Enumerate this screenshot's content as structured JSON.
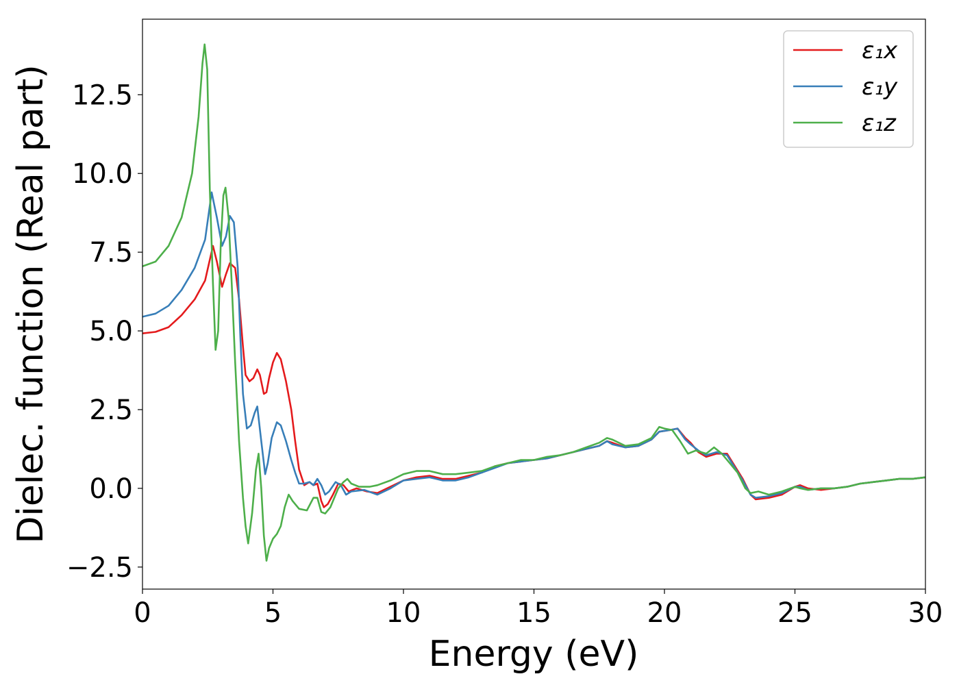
{
  "chart_data": {
    "type": "line",
    "xlabel": "Energy (eV)",
    "ylabel": "Dielec. function (Real part)",
    "xlim": [
      0,
      30
    ],
    "ylim": [
      -3.2,
      14.9
    ],
    "xticks": [
      0,
      5,
      10,
      15,
      20,
      25,
      30
    ],
    "yticks": [
      -2.5,
      0.0,
      2.5,
      5.0,
      7.5,
      10.0,
      12.5
    ],
    "grid": false,
    "legend_position": "top-right",
    "series": [
      {
        "name": "ε₁x",
        "color": "#e41a1c",
        "points": [
          [
            0,
            4.92
          ],
          [
            0.5,
            4.97
          ],
          [
            1.0,
            5.12
          ],
          [
            1.5,
            5.5
          ],
          [
            2.0,
            6.0
          ],
          [
            2.4,
            6.6
          ],
          [
            2.7,
            7.7
          ],
          [
            2.85,
            7.2
          ],
          [
            3.05,
            6.4
          ],
          [
            3.2,
            6.8
          ],
          [
            3.35,
            7.15
          ],
          [
            3.55,
            7.0
          ],
          [
            3.7,
            6.0
          ],
          [
            3.85,
            4.5
          ],
          [
            3.95,
            3.6
          ],
          [
            4.1,
            3.4
          ],
          [
            4.25,
            3.5
          ],
          [
            4.4,
            3.78
          ],
          [
            4.5,
            3.6
          ],
          [
            4.65,
            3.0
          ],
          [
            4.75,
            3.05
          ],
          [
            4.85,
            3.5
          ],
          [
            5.0,
            4.0
          ],
          [
            5.15,
            4.3
          ],
          [
            5.3,
            4.1
          ],
          [
            5.5,
            3.4
          ],
          [
            5.7,
            2.5
          ],
          [
            5.85,
            1.5
          ],
          [
            6.0,
            0.6
          ],
          [
            6.2,
            0.1
          ],
          [
            6.4,
            0.2
          ],
          [
            6.55,
            0.1
          ],
          [
            6.7,
            0.15
          ],
          [
            6.85,
            -0.4
          ],
          [
            6.95,
            -0.6
          ],
          [
            7.1,
            -0.5
          ],
          [
            7.3,
            -0.2
          ],
          [
            7.5,
            0.15
          ],
          [
            7.7,
            0.1
          ],
          [
            7.9,
            -0.1
          ],
          [
            8.2,
            0.0
          ],
          [
            8.6,
            -0.1
          ],
          [
            9.0,
            -0.15
          ],
          [
            9.5,
            0.05
          ],
          [
            10.0,
            0.25
          ],
          [
            10.5,
            0.35
          ],
          [
            11.0,
            0.4
          ],
          [
            11.5,
            0.3
          ],
          [
            12.0,
            0.3
          ],
          [
            12.5,
            0.4
          ],
          [
            13.0,
            0.5
          ],
          [
            13.5,
            0.7
          ],
          [
            14.0,
            0.8
          ],
          [
            14.5,
            0.85
          ],
          [
            15.0,
            0.9
          ],
          [
            15.5,
            0.95
          ],
          [
            16.0,
            1.05
          ],
          [
            16.5,
            1.15
          ],
          [
            17.0,
            1.25
          ],
          [
            17.5,
            1.35
          ],
          [
            17.8,
            1.5
          ],
          [
            18.0,
            1.45
          ],
          [
            18.5,
            1.3
          ],
          [
            19.0,
            1.35
          ],
          [
            19.5,
            1.55
          ],
          [
            19.8,
            1.8
          ],
          [
            20.2,
            1.85
          ],
          [
            20.5,
            1.9
          ],
          [
            20.8,
            1.6
          ],
          [
            21.0,
            1.45
          ],
          [
            21.3,
            1.15
          ],
          [
            21.6,
            1.0
          ],
          [
            22.0,
            1.1
          ],
          [
            22.4,
            1.1
          ],
          [
            22.7,
            0.7
          ],
          [
            23.0,
            0.3
          ],
          [
            23.3,
            -0.2
          ],
          [
            23.5,
            -0.35
          ],
          [
            24.0,
            -0.3
          ],
          [
            24.5,
            -0.2
          ],
          [
            25.0,
            0.05
          ],
          [
            25.2,
            0.1
          ],
          [
            25.5,
            0.0
          ],
          [
            26.0,
            -0.05
          ],
          [
            26.5,
            0.0
          ],
          [
            27.0,
            0.05
          ],
          [
            27.5,
            0.15
          ],
          [
            28.0,
            0.2
          ],
          [
            28.5,
            0.25
          ],
          [
            29.0,
            0.3
          ],
          [
            29.5,
            0.3
          ],
          [
            30.0,
            0.35
          ]
        ]
      },
      {
        "name": "ε₁y",
        "color": "#377eb8",
        "points": [
          [
            0,
            5.45
          ],
          [
            0.5,
            5.55
          ],
          [
            1.0,
            5.8
          ],
          [
            1.5,
            6.3
          ],
          [
            2.0,
            7.0
          ],
          [
            2.4,
            7.9
          ],
          [
            2.65,
            9.4
          ],
          [
            2.85,
            8.6
          ],
          [
            3.05,
            7.7
          ],
          [
            3.2,
            8.0
          ],
          [
            3.35,
            8.65
          ],
          [
            3.5,
            8.45
          ],
          [
            3.65,
            7.0
          ],
          [
            3.75,
            4.8
          ],
          [
            3.85,
            3.0
          ],
          [
            4.0,
            1.9
          ],
          [
            4.15,
            2.0
          ],
          [
            4.3,
            2.4
          ],
          [
            4.4,
            2.6
          ],
          [
            4.55,
            1.5
          ],
          [
            4.7,
            0.45
          ],
          [
            4.8,
            0.8
          ],
          [
            4.95,
            1.6
          ],
          [
            5.15,
            2.1
          ],
          [
            5.3,
            2.0
          ],
          [
            5.5,
            1.5
          ],
          [
            5.7,
            0.9
          ],
          [
            5.85,
            0.5
          ],
          [
            6.0,
            0.15
          ],
          [
            6.2,
            0.15
          ],
          [
            6.4,
            0.2
          ],
          [
            6.55,
            0.1
          ],
          [
            6.7,
            0.3
          ],
          [
            6.85,
            0.1
          ],
          [
            7.0,
            -0.2
          ],
          [
            7.15,
            -0.1
          ],
          [
            7.4,
            0.2
          ],
          [
            7.6,
            0.1
          ],
          [
            7.8,
            -0.2
          ],
          [
            8.0,
            -0.1
          ],
          [
            8.5,
            -0.05
          ],
          [
            9.0,
            -0.2
          ],
          [
            9.5,
            0.0
          ],
          [
            10.0,
            0.25
          ],
          [
            10.5,
            0.3
          ],
          [
            11.0,
            0.35
          ],
          [
            11.5,
            0.25
          ],
          [
            12.0,
            0.25
          ],
          [
            12.5,
            0.35
          ],
          [
            13.0,
            0.5
          ],
          [
            13.5,
            0.65
          ],
          [
            14.0,
            0.8
          ],
          [
            14.5,
            0.85
          ],
          [
            15.0,
            0.9
          ],
          [
            15.5,
            0.95
          ],
          [
            16.0,
            1.05
          ],
          [
            16.5,
            1.15
          ],
          [
            17.0,
            1.25
          ],
          [
            17.5,
            1.35
          ],
          [
            17.8,
            1.5
          ],
          [
            18.0,
            1.4
          ],
          [
            18.5,
            1.3
          ],
          [
            19.0,
            1.35
          ],
          [
            19.5,
            1.55
          ],
          [
            19.8,
            1.8
          ],
          [
            20.2,
            1.85
          ],
          [
            20.5,
            1.9
          ],
          [
            20.8,
            1.55
          ],
          [
            21.0,
            1.4
          ],
          [
            21.3,
            1.2
          ],
          [
            21.6,
            1.05
          ],
          [
            22.0,
            1.15
          ],
          [
            22.4,
            1.05
          ],
          [
            22.7,
            0.65
          ],
          [
            23.0,
            0.25
          ],
          [
            23.3,
            -0.2
          ],
          [
            23.5,
            -0.3
          ],
          [
            24.0,
            -0.25
          ],
          [
            24.5,
            -0.15
          ],
          [
            25.0,
            0.05
          ],
          [
            25.2,
            0.05
          ],
          [
            25.5,
            -0.05
          ],
          [
            26.0,
            0.0
          ],
          [
            26.5,
            0.0
          ],
          [
            27.0,
            0.05
          ],
          [
            27.5,
            0.15
          ],
          [
            28.0,
            0.2
          ],
          [
            28.5,
            0.25
          ],
          [
            29.0,
            0.3
          ],
          [
            29.5,
            0.3
          ],
          [
            30.0,
            0.35
          ]
        ]
      },
      {
        "name": "ε₁z",
        "color": "#4daf4a",
        "points": [
          [
            0,
            7.05
          ],
          [
            0.5,
            7.2
          ],
          [
            1.0,
            7.7
          ],
          [
            1.5,
            8.6
          ],
          [
            1.9,
            10.0
          ],
          [
            2.15,
            11.8
          ],
          [
            2.3,
            13.5
          ],
          [
            2.38,
            14.1
          ],
          [
            2.48,
            13.3
          ],
          [
            2.58,
            9.5
          ],
          [
            2.7,
            6.5
          ],
          [
            2.8,
            4.4
          ],
          [
            2.9,
            5.0
          ],
          [
            3.0,
            7.8
          ],
          [
            3.1,
            9.3
          ],
          [
            3.18,
            9.55
          ],
          [
            3.3,
            8.6
          ],
          [
            3.42,
            6.5
          ],
          [
            3.55,
            4.0
          ],
          [
            3.7,
            1.5
          ],
          [
            3.85,
            -0.3
          ],
          [
            3.95,
            -1.2
          ],
          [
            4.05,
            -1.75
          ],
          [
            4.2,
            -0.8
          ],
          [
            4.35,
            0.6
          ],
          [
            4.45,
            1.1
          ],
          [
            4.55,
            0.0
          ],
          [
            4.65,
            -1.5
          ],
          [
            4.75,
            -2.3
          ],
          [
            4.85,
            -1.9
          ],
          [
            5.0,
            -1.6
          ],
          [
            5.15,
            -1.45
          ],
          [
            5.3,
            -1.2
          ],
          [
            5.45,
            -0.6
          ],
          [
            5.6,
            -0.2
          ],
          [
            5.75,
            -0.4
          ],
          [
            6.0,
            -0.65
          ],
          [
            6.3,
            -0.7
          ],
          [
            6.55,
            -0.3
          ],
          [
            6.7,
            -0.3
          ],
          [
            6.85,
            -0.75
          ],
          [
            7.0,
            -0.8
          ],
          [
            7.2,
            -0.6
          ],
          [
            7.5,
            0.0
          ],
          [
            7.7,
            0.2
          ],
          [
            7.85,
            0.3
          ],
          [
            8.0,
            0.15
          ],
          [
            8.3,
            0.05
          ],
          [
            8.7,
            0.05
          ],
          [
            9.0,
            0.1
          ],
          [
            9.5,
            0.25
          ],
          [
            10.0,
            0.45
          ],
          [
            10.5,
            0.55
          ],
          [
            11.0,
            0.55
          ],
          [
            11.5,
            0.45
          ],
          [
            12.0,
            0.45
          ],
          [
            12.5,
            0.5
          ],
          [
            13.0,
            0.55
          ],
          [
            13.5,
            0.7
          ],
          [
            14.0,
            0.8
          ],
          [
            14.5,
            0.9
          ],
          [
            15.0,
            0.9
          ],
          [
            15.5,
            1.0
          ],
          [
            16.0,
            1.05
          ],
          [
            16.5,
            1.15
          ],
          [
            17.0,
            1.3
          ],
          [
            17.5,
            1.45
          ],
          [
            17.8,
            1.6
          ],
          [
            18.0,
            1.55
          ],
          [
            18.5,
            1.35
          ],
          [
            19.0,
            1.4
          ],
          [
            19.5,
            1.6
          ],
          [
            19.8,
            1.95
          ],
          [
            20.0,
            1.9
          ],
          [
            20.3,
            1.85
          ],
          [
            20.6,
            1.5
          ],
          [
            20.9,
            1.1
          ],
          [
            21.2,
            1.2
          ],
          [
            21.6,
            1.1
          ],
          [
            21.9,
            1.3
          ],
          [
            22.2,
            1.1
          ],
          [
            22.5,
            0.8
          ],
          [
            22.8,
            0.5
          ],
          [
            23.1,
            0.0
          ],
          [
            23.3,
            -0.15
          ],
          [
            23.6,
            -0.1
          ],
          [
            24.0,
            -0.2
          ],
          [
            24.5,
            -0.1
          ],
          [
            25.0,
            0.05
          ],
          [
            25.2,
            0.0
          ],
          [
            25.5,
            -0.05
          ],
          [
            26.0,
            0.0
          ],
          [
            26.5,
            0.0
          ],
          [
            27.0,
            0.05
          ],
          [
            27.5,
            0.15
          ],
          [
            28.0,
            0.2
          ],
          [
            28.5,
            0.25
          ],
          [
            29.0,
            0.3
          ],
          [
            29.5,
            0.3
          ],
          [
            30.0,
            0.35
          ]
        ]
      }
    ]
  }
}
